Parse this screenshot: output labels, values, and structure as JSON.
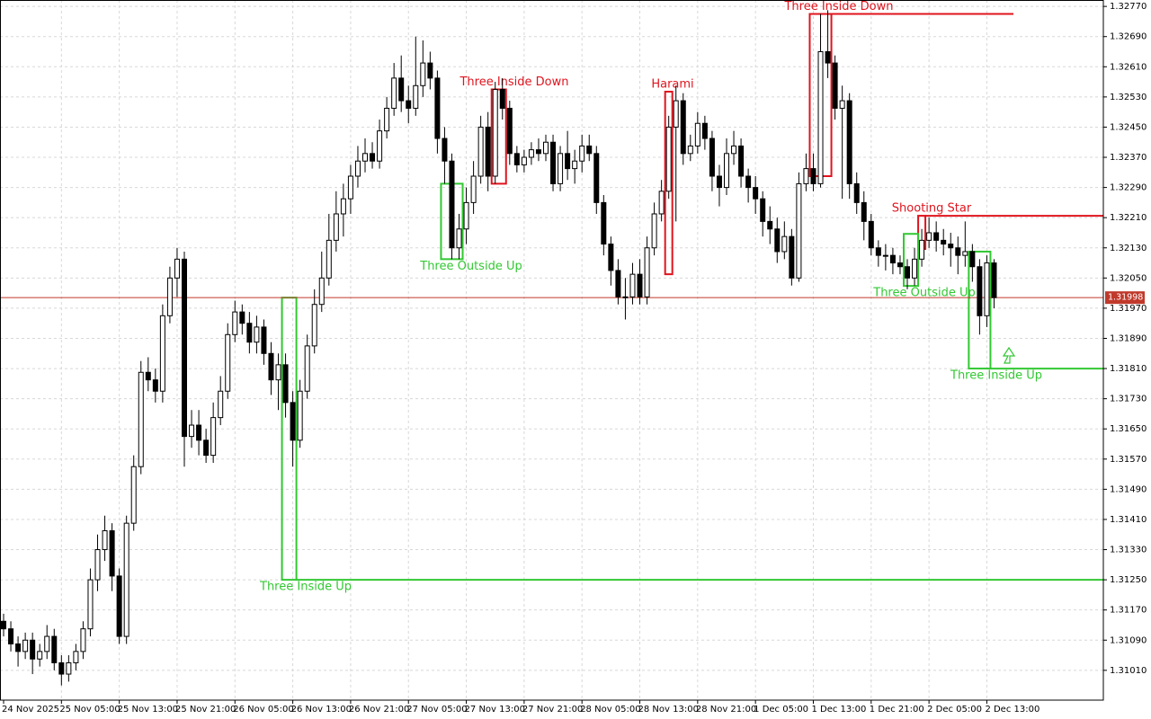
{
  "chart_data": {
    "type": "candlestick",
    "categories": [
      "24 Nov 2025",
      null,
      null,
      null,
      null,
      null,
      null,
      null,
      "25 Nov 05:00",
      null,
      null,
      null,
      null,
      null,
      null,
      null,
      "25 Nov 13:00",
      null,
      null,
      null,
      null,
      null,
      null,
      null,
      "25 Nov 21:00",
      null,
      null,
      null,
      null,
      null,
      null,
      null,
      "26 Nov 05:00",
      null,
      null,
      null,
      null,
      null,
      null,
      null,
      "26 Nov 13:00",
      null,
      null,
      null,
      null,
      null,
      null,
      null,
      "26 Nov 21:00",
      null,
      null,
      null,
      null,
      null,
      null,
      null,
      "27 Nov 05:00",
      null,
      null,
      null,
      null,
      null,
      null,
      null,
      "27 Nov 13:00",
      null,
      null,
      null,
      null,
      null,
      null,
      null,
      "27 Nov 21:00",
      null,
      null,
      null,
      null,
      null,
      null,
      null,
      "28 Nov 05:00",
      null,
      null,
      null,
      null,
      null,
      null,
      null,
      "28 Nov 13:00",
      null,
      null,
      null,
      null,
      null,
      null,
      null,
      "28 Nov 21:00",
      null,
      null,
      null,
      null,
      null,
      null,
      null,
      "1 Dec 05:00",
      null,
      null,
      null,
      null,
      null,
      null,
      null,
      "1 Dec 13:00",
      null,
      null,
      null,
      null,
      null,
      null,
      null,
      "1 Dec 21:00",
      null,
      null,
      null,
      null,
      null,
      null,
      null,
      "2 Dec 05:00",
      null,
      null,
      null,
      null,
      null,
      null,
      null,
      "2 Dec 13:00",
      null
    ],
    "open": [
      1.3114,
      1.3112,
      1.3108,
      1.3106,
      1.3109,
      1.3104,
      1.3106,
      1.311,
      1.3103,
      1.31,
      1.3103,
      1.3106,
      1.3112,
      1.3125,
      1.3133,
      1.3138,
      1.3126,
      1.311,
      1.314,
      1.3155,
      1.318,
      1.3178,
      1.3175,
      1.3195,
      1.3205,
      1.321,
      1.3163,
      1.3166,
      1.3162,
      1.3158,
      1.3168,
      1.3175,
      1.319,
      1.3196,
      1.3193,
      1.3188,
      1.3192,
      1.3185,
      1.3178,
      1.3182,
      1.3172,
      1.3162,
      1.3175,
      1.3187,
      1.3198,
      1.3205,
      1.3215,
      1.3222,
      1.3226,
      1.3232,
      1.3236,
      1.3238,
      1.3236,
      1.3244,
      1.325,
      1.3258,
      1.3252,
      1.325,
      1.3256,
      1.3262,
      1.3258,
      1.3242,
      1.3236,
      1.3213,
      1.3218,
      1.3225,
      1.3232,
      1.3245,
      1.3232,
      1.3255,
      1.325,
      1.3238,
      1.3235,
      1.3237,
      1.3239,
      1.3238,
      1.3241,
      1.323,
      1.3238,
      1.3234,
      1.3236,
      1.324,
      1.3238,
      1.3225,
      1.3214,
      1.3207,
      1.32,
      1.32,
      1.3206,
      1.32,
      1.3213,
      1.3222,
      1.3228,
      1.3245,
      1.3252,
      1.3238,
      1.324,
      1.3246,
      1.3242,
      1.3232,
      1.3229,
      1.3238,
      1.324,
      1.3232,
      1.3229,
      1.3226,
      1.322,
      1.3218,
      1.3212,
      1.3216,
      1.3205,
      1.323,
      1.3234,
      1.323,
      1.3265,
      1.3262,
      1.325,
      1.3252,
      1.323,
      1.3225,
      1.322,
      1.3213,
      1.3211,
      1.3211,
      1.3209,
      1.3208,
      1.3205,
      1.321,
      1.3215,
      1.3217,
      1.3215,
      1.3214,
      1.3213,
      1.3211,
      1.3212,
      1.3208,
      1.3195,
      1.3209
    ],
    "high": [
      1.3116,
      1.3114,
      1.311,
      1.3111,
      1.3111,
      1.3108,
      1.3113,
      1.3112,
      1.3105,
      1.3105,
      1.3108,
      1.3114,
      1.3128,
      1.3137,
      1.3142,
      1.314,
      1.3128,
      1.3142,
      1.3158,
      1.3183,
      1.3184,
      1.3181,
      1.3198,
      1.3208,
      1.3213,
      1.3212,
      1.317,
      1.317,
      1.3165,
      1.3172,
      1.3179,
      1.3193,
      1.3199,
      1.3198,
      1.3196,
      1.3195,
      1.3194,
      1.3188,
      1.3185,
      1.3185,
      1.3175,
      1.3178,
      1.319,
      1.3202,
      1.3212,
      1.3222,
      1.3228,
      1.323,
      1.3235,
      1.324,
      1.3242,
      1.3241,
      1.3247,
      1.3253,
      1.3262,
      1.3264,
      1.3256,
      1.3269,
      1.3268,
      1.3265,
      1.326,
      1.3245,
      1.3238,
      1.3222,
      1.3229,
      1.3236,
      1.3248,
      1.3249,
      1.3257,
      1.3258,
      1.3252,
      1.324,
      1.3239,
      1.3241,
      1.3242,
      1.3243,
      1.3243,
      1.324,
      1.3244,
      1.3239,
      1.3243,
      1.3243,
      1.324,
      1.3227,
      1.3216,
      1.321,
      1.3205,
      1.3209,
      1.321,
      1.3216,
      1.3225,
      1.3231,
      1.3248,
      1.3256,
      1.3254,
      1.3243,
      1.3249,
      1.3248,
      1.3244,
      1.3235,
      1.3242,
      1.3244,
      1.3242,
      1.3234,
      1.3232,
      1.3228,
      1.3224,
      1.3221,
      1.322,
      1.3218,
      1.3233,
      1.3238,
      1.3238,
      1.3275,
      1.3276,
      1.3264,
      1.3256,
      1.3254,
      1.3233,
      1.3228,
      1.3222,
      1.3215,
      1.3214,
      1.3213,
      1.3211,
      1.321,
      1.3213,
      1.3218,
      1.3221,
      1.322,
      1.3218,
      1.3217,
      1.3216,
      1.322,
      1.3214,
      1.321,
      1.3211,
      1.321
    ],
    "low": [
      1.311,
      1.3106,
      1.3102,
      1.3104,
      1.31,
      1.3102,
      1.3104,
      1.3101,
      1.3097,
      1.3098,
      1.3101,
      1.3104,
      1.311,
      1.3122,
      1.313,
      1.3122,
      1.3108,
      1.3108,
      1.3138,
      1.3153,
      1.3175,
      1.3172,
      1.3172,
      1.3193,
      1.32,
      1.3155,
      1.316,
      1.3158,
      1.3156,
      1.3156,
      1.3166,
      1.3173,
      1.3188,
      1.319,
      1.3185,
      1.3185,
      1.3182,
      1.3174,
      1.317,
      1.3168,
      1.3155,
      1.316,
      1.3173,
      1.3185,
      1.3196,
      1.3203,
      1.3212,
      1.3216,
      1.3222,
      1.3229,
      1.3233,
      1.3234,
      1.3234,
      1.3242,
      1.3248,
      1.3249,
      1.3246,
      1.3248,
      1.3253,
      1.3255,
      1.3238,
      1.323,
      1.321,
      1.321,
      1.3214,
      1.3222,
      1.323,
      1.3228,
      1.323,
      1.3247,
      1.3235,
      1.3233,
      1.3233,
      1.3235,
      1.3236,
      1.3236,
      1.3228,
      1.3228,
      1.3231,
      1.323,
      1.3233,
      1.3236,
      1.3222,
      1.3211,
      1.3203,
      1.3198,
      1.3194,
      1.3198,
      1.3198,
      1.3198,
      1.3211,
      1.322,
      1.3226,
      1.322,
      1.3235,
      1.3236,
      1.3238,
      1.3239,
      1.3228,
      1.3224,
      1.3227,
      1.3235,
      1.3229,
      1.3225,
      1.3222,
      1.3216,
      1.3214,
      1.3209,
      1.321,
      1.3203,
      1.3204,
      1.3228,
      1.3228,
      1.3229,
      1.3258,
      1.3247,
      1.3226,
      1.3226,
      1.3222,
      1.3215,
      1.3211,
      1.3208,
      1.3207,
      1.3206,
      1.3206,
      1.3202,
      1.3203,
      1.3208,
      1.3213,
      1.3212,
      1.3211,
      1.3208,
      1.3206,
      1.3208,
      1.3204,
      1.319,
      1.3192,
      1.3197
    ],
    "close": [
      1.3112,
      1.3108,
      1.3106,
      1.3109,
      1.3104,
      1.3106,
      1.311,
      1.3103,
      1.31,
      1.3103,
      1.3106,
      1.3112,
      1.3125,
      1.3133,
      1.3138,
      1.3126,
      1.311,
      1.314,
      1.3155,
      1.318,
      1.3178,
      1.3175,
      1.3195,
      1.3205,
      1.321,
      1.3163,
      1.3166,
      1.3162,
      1.3158,
      1.3168,
      1.3175,
      1.319,
      1.3196,
      1.3193,
      1.3188,
      1.3192,
      1.3185,
      1.3178,
      1.3182,
      1.3172,
      1.3162,
      1.3175,
      1.3187,
      1.3198,
      1.3205,
      1.3215,
      1.3222,
      1.3226,
      1.3232,
      1.3236,
      1.3238,
      1.3236,
      1.3244,
      1.325,
      1.3258,
      1.3252,
      1.325,
      1.3256,
      1.3262,
      1.3258,
      1.3242,
      1.3236,
      1.3213,
      1.3218,
      1.3225,
      1.3232,
      1.3245,
      1.3232,
      1.3255,
      1.325,
      1.3238,
      1.3235,
      1.3237,
      1.3239,
      1.3238,
      1.3241,
      1.323,
      1.3238,
      1.3234,
      1.3236,
      1.324,
      1.3238,
      1.3225,
      1.3214,
      1.3207,
      1.32,
      1.32,
      1.3206,
      1.32,
      1.3213,
      1.3222,
      1.3228,
      1.3245,
      1.3252,
      1.3238,
      1.324,
      1.3246,
      1.3242,
      1.3232,
      1.3229,
      1.3238,
      1.324,
      1.3232,
      1.3229,
      1.3226,
      1.322,
      1.3218,
      1.3212,
      1.3216,
      1.3205,
      1.323,
      1.3234,
      1.323,
      1.3265,
      1.3262,
      1.325,
      1.3252,
      1.323,
      1.3225,
      1.322,
      1.3213,
      1.3211,
      1.3211,
      1.3209,
      1.3208,
      1.3205,
      1.321,
      1.3215,
      1.3217,
      1.3215,
      1.3214,
      1.3213,
      1.3211,
      1.3212,
      1.3208,
      1.3195,
      1.3209,
      1.31998
    ],
    "current_price": 1.31998,
    "ylim": [
      1.30931,
      1.32787
    ],
    "yticks": [
      {
        "value": 1.3277,
        "label": "1.32770"
      },
      {
        "value": 1.3269,
        "label": "1.32690"
      },
      {
        "value": 1.3261,
        "label": "1.32610"
      },
      {
        "value": 1.3253,
        "label": "1.32530"
      },
      {
        "value": 1.3245,
        "label": "1.32450"
      },
      {
        "value": 1.3237,
        "label": "1.32370"
      },
      {
        "value": 1.3229,
        "label": "1.32290"
      },
      {
        "value": 1.3221,
        "label": "1.32210"
      },
      {
        "value": 1.3213,
        "label": "1.32130"
      },
      {
        "value": 1.3205,
        "label": "1.32050"
      },
      {
        "value": 1.3197,
        "label": "1.31970"
      },
      {
        "value": 1.3189,
        "label": "1.31890"
      },
      {
        "value": 1.3181,
        "label": "1.31810"
      },
      {
        "value": 1.3173,
        "label": "1.31730"
      },
      {
        "value": 1.3165,
        "label": "1.31650"
      },
      {
        "value": 1.3157,
        "label": "1.31570"
      },
      {
        "value": 1.3149,
        "label": "1.31490"
      },
      {
        "value": 1.3141,
        "label": "1.31410"
      },
      {
        "value": 1.3133,
        "label": "1.31330"
      },
      {
        "value": 1.3125,
        "label": "1.31250"
      },
      {
        "value": 1.3117,
        "label": "1.31170"
      },
      {
        "value": 1.3109,
        "label": "1.31090"
      },
      {
        "value": 1.3101,
        "label": "1.31010"
      }
    ],
    "grid": true,
    "annotations": [
      {
        "label": "Three Inside Up",
        "color": "#32c832",
        "top": 1.31998,
        "bottom": 1.3125,
        "level": 1.3125
      },
      {
        "label": "Three Outside Up",
        "color": "#32c832",
        "top": 1.323,
        "bottom": 1.321
      },
      {
        "label": "Three Inside Down",
        "color": "#e0141e",
        "top": 1.3255,
        "bottom": 1.323
      },
      {
        "label": "Harami",
        "color": "#e0141e",
        "top": 1.32544,
        "bottom": 1.3206
      },
      {
        "label": "Three Inside Down",
        "color": "#e0141e",
        "top": 1.3275,
        "bottom": 1.3232,
        "level": 1.3275
      },
      {
        "label": "Shooting Star",
        "color": "#e0141e",
        "top": 1.32215,
        "bottom": 1.32127,
        "level": 1.32215
      },
      {
        "label": "Three Outside Up",
        "color": "#32c832",
        "top": 1.32167,
        "bottom": 1.32029
      },
      {
        "label": "Three Inside Up",
        "color": "#32c832",
        "top": 1.3212,
        "bottom": 1.3181,
        "level": 1.3181
      }
    ]
  }
}
